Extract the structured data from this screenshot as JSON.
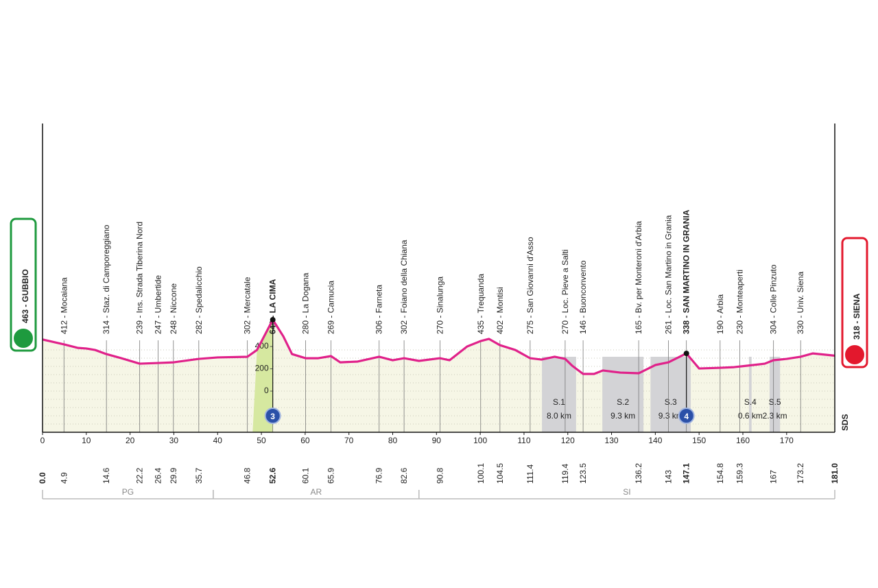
{
  "chart_data": {
    "type": "area",
    "start": {
      "label": "463 - GUBBIO",
      "color": "#1e9a3e"
    },
    "finish": {
      "label": "318 - SIENA",
      "color": "#e3182d"
    },
    "color": "#e0218a",
    "fill": "#f6f6e6",
    "x": [
      0,
      5,
      8,
      10,
      12,
      14.6,
      18,
      22.2,
      26.4,
      29.9,
      35.7,
      40,
      46.8,
      49,
      52.6,
      55,
      57,
      60.1,
      63,
      65.9,
      68,
      72,
      76.9,
      80,
      82.6,
      86,
      90.8,
      93,
      97,
      100.1,
      102,
      104.5,
      108,
      111.4,
      114,
      117,
      119.4,
      121,
      123.5,
      126,
      128,
      132,
      136.2,
      140,
      143,
      147.1,
      150,
      154.8,
      158,
      161,
      165,
      167,
      170,
      173.2,
      176,
      181
    ],
    "values": [
      463,
      418,
      388,
      382,
      369,
      332,
      295,
      246,
      252,
      258,
      289,
      302,
      308,
      369,
      640,
      492,
      332,
      295,
      295,
      314,
      258,
      265,
      308,
      277,
      295,
      271,
      295,
      277,
      400,
      449,
      468,
      412,
      369,
      295,
      283,
      308,
      289,
      228,
      154,
      154,
      185,
      166,
      160,
      234,
      258,
      338,
      203,
      209,
      215,
      228,
      246,
      277,
      289,
      308,
      338,
      318
    ],
    "xlim": [
      0,
      181
    ],
    "xticks": [
      0,
      10,
      20,
      30,
      40,
      50,
      60,
      70,
      80,
      90,
      100,
      110,
      120,
      130,
      140,
      150,
      160,
      170
    ],
    "ylim": [
      -369,
      2400
    ],
    "yticks": [
      0,
      200,
      400
    ],
    "waypoints": [
      {
        "km": {
          "value": 0,
          "label": "0.0"
        }
      },
      {
        "km": 4.9,
        "label": "412 - Mocaiana"
      },
      {
        "km": 14.6,
        "label": "314 - Staz. di Camporeggiano"
      },
      {
        "km": 22.2,
        "label": "239 - Ins. Strada Tiberina Nord"
      },
      {
        "km": 26.4,
        "label": "247 - Umbertide"
      },
      {
        "km": 29.9,
        "label": "248 - Niccone"
      },
      {
        "km": 35.7,
        "label": "282 - Spedalicchio"
      },
      {
        "km": 46.8,
        "label": "302 - Mercatale"
      },
      {
        "km": 52.6,
        "label": "640 - LA CIMA",
        "bold": true
      },
      {
        "km": 60.1,
        "label": "280 - La Dogana"
      },
      {
        "km": 65.9,
        "label": "269 - Camucia"
      },
      {
        "km": 76.9,
        "label": "306 - Farneta"
      },
      {
        "km": 82.6,
        "label": "302 - Foiano della Chiana"
      },
      {
        "km": 90.8,
        "label": "270 - Sinalunga"
      },
      {
        "km": 100.1,
        "label": "435 - Trequanda"
      },
      {
        "km": 104.5,
        "label": "402 - Montisi"
      },
      {
        "km": 111.4,
        "label": "275 - San Giovanni d'Asso"
      },
      {
        "km": 119.4,
        "label": "270 - Loc. Pieve a Salti"
      },
      {
        "km": 123.5,
        "label": "146 - Buonconvento"
      },
      {
        "km": 136.2,
        "label": "165 - Bv. per Monteroni d'Arbia"
      },
      {
        "km": 143.0,
        "label": "261 - Loc. San Martino in Grania"
      },
      {
        "km": 147.1,
        "label": "338 - SAN MARTINO IN GRANIA",
        "bold": true
      },
      {
        "km": 154.8,
        "label": "190 - Arbia"
      },
      {
        "km": 159.3,
        "label": "230 - Monteaperti"
      },
      {
        "km": 167.0,
        "label": "304 - Colle Pinzuto"
      },
      {
        "km": 173.2,
        "label": "330 - Univ. Siena"
      },
      {
        "km": {
          "value": 181,
          "label": "181.0"
        }
      }
    ],
    "sectors": [
      {
        "label": "S.1",
        "length": "8.0 km",
        "from": 114.1,
        "to": 121.9
      },
      {
        "label": "S.2",
        "length": "9.3 km",
        "from": 127.9,
        "to": 137.3
      },
      {
        "label": "S.3",
        "length": "9.3 km",
        "from": 138.9,
        "to": 148.1
      },
      {
        "label": "S.4",
        "length": "0.6 km",
        "from": 161.4,
        "to": 162.0
      },
      {
        "label": "S.5",
        "length": "2.3 km",
        "from": 166.1,
        "to": 168.5
      }
    ],
    "climbs": [
      {
        "km": 52.6,
        "from": 48,
        "category": 3,
        "color": "#d6e8a0"
      },
      {
        "km": 147.1,
        "category": 4
      }
    ],
    "regions": [
      {
        "label": "PG",
        "from": 0,
        "to": 39
      },
      {
        "label": "AR",
        "from": 39,
        "to": 86
      },
      {
        "label": "SI",
        "from": 86,
        "to": 181
      }
    ],
    "logo": "SDS"
  }
}
